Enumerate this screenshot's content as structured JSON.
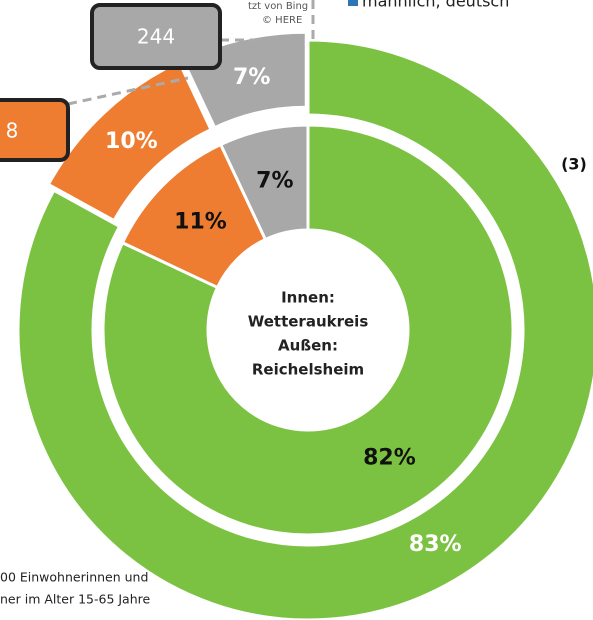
{
  "chart_data": {
    "type": "donut",
    "center_label": [
      "Innen:",
      "Wetteraukreis",
      "Außen:",
      "Reichelsheim"
    ],
    "colors": [
      "#7cc242",
      "#ee7d31",
      "#a8a8a8"
    ],
    "rings": [
      {
        "values": [
          82,
          11,
          7
        ],
        "value_labels": [
          "82%",
          "11%",
          "7%"
        ]
      },
      {
        "values": [
          83,
          10,
          7
        ],
        "value_labels": [
          "83%",
          "10%",
          "7%"
        ]
      }
    ],
    "callouts": [
      "244",
      "8"
    ],
    "side_label": "(3)",
    "legend_entry": "männlich, deutsch",
    "map_credit": [
      "tzt von Bing",
      "© HERE"
    ],
    "footnote": [
      "00 Einwohnerinnen und",
      "ner im Alter 15-65 Jahre"
    ]
  }
}
